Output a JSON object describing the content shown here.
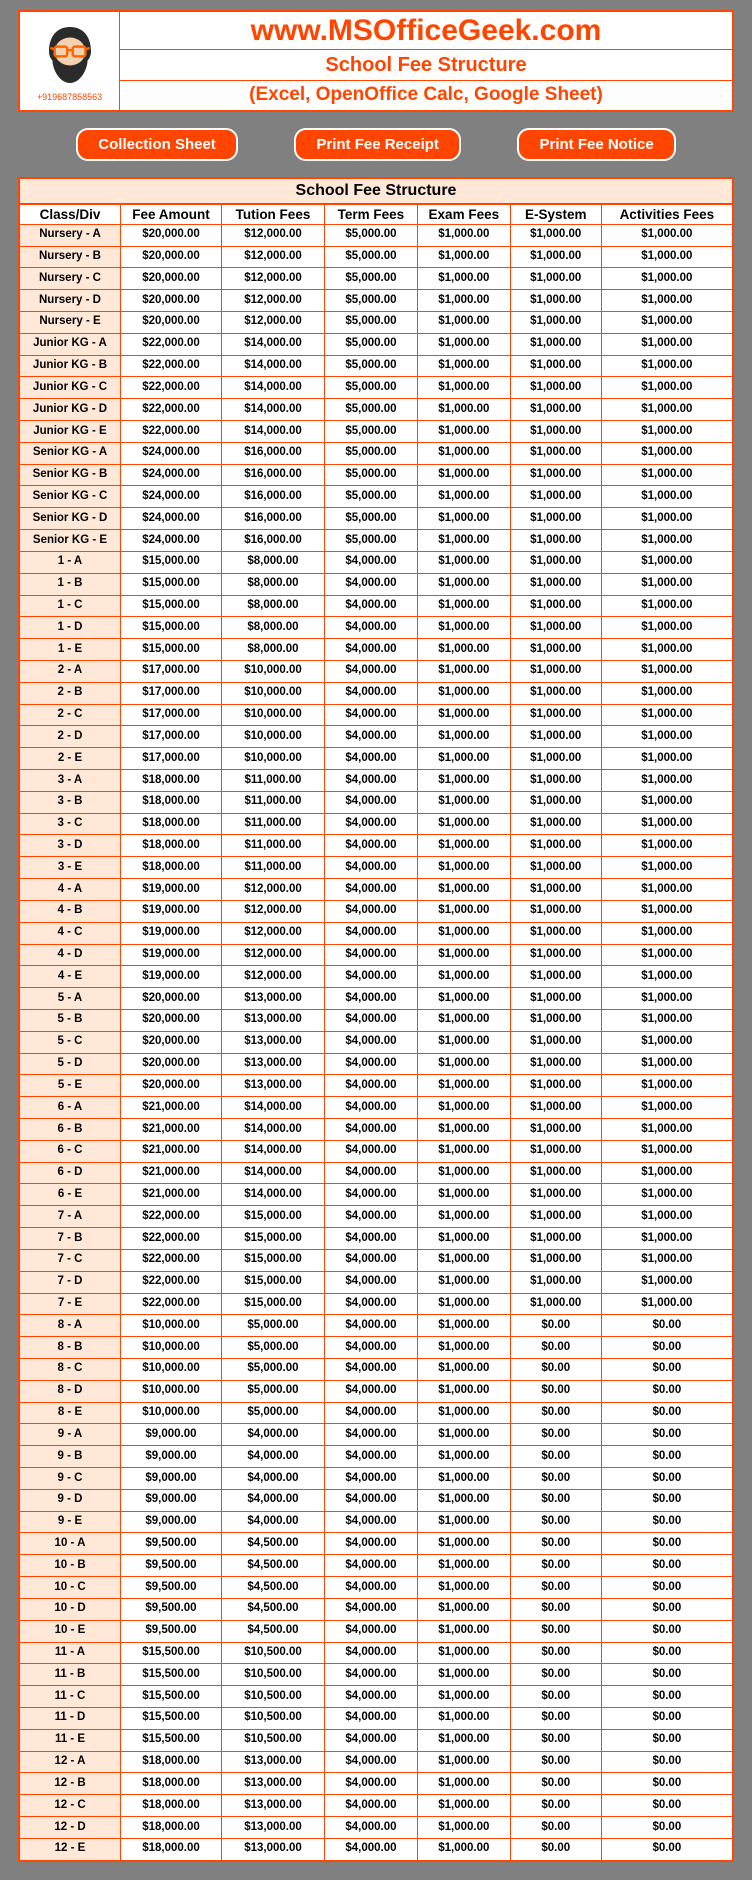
{
  "header": {
    "phone": "+919687858563",
    "url": "www.MSOfficeGeek.com",
    "title": "School Fee Structure",
    "subtitle": "(Excel, OpenOffice Calc, Google Sheet)"
  },
  "buttons": {
    "collection": "Collection Sheet",
    "receipt": "Print Fee Receipt",
    "notice": "Print Fee Notice"
  },
  "table": {
    "caption": "School Fee Structure",
    "columns": [
      "Class/Div",
      "Fee Amount",
      "Tution Fees",
      "Term Fees",
      "Exam Fees",
      "E-System",
      "Activities Fees"
    ],
    "rows": [
      [
        "Nursery - A",
        "$20,000.00",
        "$12,000.00",
        "$5,000.00",
        "$1,000.00",
        "$1,000.00",
        "$1,000.00"
      ],
      [
        "Nursery - B",
        "$20,000.00",
        "$12,000.00",
        "$5,000.00",
        "$1,000.00",
        "$1,000.00",
        "$1,000.00"
      ],
      [
        "Nursery - C",
        "$20,000.00",
        "$12,000.00",
        "$5,000.00",
        "$1,000.00",
        "$1,000.00",
        "$1,000.00"
      ],
      [
        "Nursery - D",
        "$20,000.00",
        "$12,000.00",
        "$5,000.00",
        "$1,000.00",
        "$1,000.00",
        "$1,000.00"
      ],
      [
        "Nursery - E",
        "$20,000.00",
        "$12,000.00",
        "$5,000.00",
        "$1,000.00",
        "$1,000.00",
        "$1,000.00"
      ],
      [
        "Junior KG - A",
        "$22,000.00",
        "$14,000.00",
        "$5,000.00",
        "$1,000.00",
        "$1,000.00",
        "$1,000.00"
      ],
      [
        "Junior KG - B",
        "$22,000.00",
        "$14,000.00",
        "$5,000.00",
        "$1,000.00",
        "$1,000.00",
        "$1,000.00"
      ],
      [
        "Junior KG - C",
        "$22,000.00",
        "$14,000.00",
        "$5,000.00",
        "$1,000.00",
        "$1,000.00",
        "$1,000.00"
      ],
      [
        "Junior KG - D",
        "$22,000.00",
        "$14,000.00",
        "$5,000.00",
        "$1,000.00",
        "$1,000.00",
        "$1,000.00"
      ],
      [
        "Junior KG - E",
        "$22,000.00",
        "$14,000.00",
        "$5,000.00",
        "$1,000.00",
        "$1,000.00",
        "$1,000.00"
      ],
      [
        "Senior KG - A",
        "$24,000.00",
        "$16,000.00",
        "$5,000.00",
        "$1,000.00",
        "$1,000.00",
        "$1,000.00"
      ],
      [
        "Senior KG - B",
        "$24,000.00",
        "$16,000.00",
        "$5,000.00",
        "$1,000.00",
        "$1,000.00",
        "$1,000.00"
      ],
      [
        "Senior KG - C",
        "$24,000.00",
        "$16,000.00",
        "$5,000.00",
        "$1,000.00",
        "$1,000.00",
        "$1,000.00"
      ],
      [
        "Senior KG - D",
        "$24,000.00",
        "$16,000.00",
        "$5,000.00",
        "$1,000.00",
        "$1,000.00",
        "$1,000.00"
      ],
      [
        "Senior KG - E",
        "$24,000.00",
        "$16,000.00",
        "$5,000.00",
        "$1,000.00",
        "$1,000.00",
        "$1,000.00"
      ],
      [
        "1 - A",
        "$15,000.00",
        "$8,000.00",
        "$4,000.00",
        "$1,000.00",
        "$1,000.00",
        "$1,000.00"
      ],
      [
        "1 - B",
        "$15,000.00",
        "$8,000.00",
        "$4,000.00",
        "$1,000.00",
        "$1,000.00",
        "$1,000.00"
      ],
      [
        "1 - C",
        "$15,000.00",
        "$8,000.00",
        "$4,000.00",
        "$1,000.00",
        "$1,000.00",
        "$1,000.00"
      ],
      [
        "1 - D",
        "$15,000.00",
        "$8,000.00",
        "$4,000.00",
        "$1,000.00",
        "$1,000.00",
        "$1,000.00"
      ],
      [
        "1 - E",
        "$15,000.00",
        "$8,000.00",
        "$4,000.00",
        "$1,000.00",
        "$1,000.00",
        "$1,000.00"
      ],
      [
        "2 - A",
        "$17,000.00",
        "$10,000.00",
        "$4,000.00",
        "$1,000.00",
        "$1,000.00",
        "$1,000.00"
      ],
      [
        "2 - B",
        "$17,000.00",
        "$10,000.00",
        "$4,000.00",
        "$1,000.00",
        "$1,000.00",
        "$1,000.00"
      ],
      [
        "2 - C",
        "$17,000.00",
        "$10,000.00",
        "$4,000.00",
        "$1,000.00",
        "$1,000.00",
        "$1,000.00"
      ],
      [
        "2 - D",
        "$17,000.00",
        "$10,000.00",
        "$4,000.00",
        "$1,000.00",
        "$1,000.00",
        "$1,000.00"
      ],
      [
        "2 - E",
        "$17,000.00",
        "$10,000.00",
        "$4,000.00",
        "$1,000.00",
        "$1,000.00",
        "$1,000.00"
      ],
      [
        "3 - A",
        "$18,000.00",
        "$11,000.00",
        "$4,000.00",
        "$1,000.00",
        "$1,000.00",
        "$1,000.00"
      ],
      [
        "3 - B",
        "$18,000.00",
        "$11,000.00",
        "$4,000.00",
        "$1,000.00",
        "$1,000.00",
        "$1,000.00"
      ],
      [
        "3 - C",
        "$18,000.00",
        "$11,000.00",
        "$4,000.00",
        "$1,000.00",
        "$1,000.00",
        "$1,000.00"
      ],
      [
        "3 - D",
        "$18,000.00",
        "$11,000.00",
        "$4,000.00",
        "$1,000.00",
        "$1,000.00",
        "$1,000.00"
      ],
      [
        "3 - E",
        "$18,000.00",
        "$11,000.00",
        "$4,000.00",
        "$1,000.00",
        "$1,000.00",
        "$1,000.00"
      ],
      [
        "4 - A",
        "$19,000.00",
        "$12,000.00",
        "$4,000.00",
        "$1,000.00",
        "$1,000.00",
        "$1,000.00"
      ],
      [
        "4 - B",
        "$19,000.00",
        "$12,000.00",
        "$4,000.00",
        "$1,000.00",
        "$1,000.00",
        "$1,000.00"
      ],
      [
        "4 - C",
        "$19,000.00",
        "$12,000.00",
        "$4,000.00",
        "$1,000.00",
        "$1,000.00",
        "$1,000.00"
      ],
      [
        "4 - D",
        "$19,000.00",
        "$12,000.00",
        "$4,000.00",
        "$1,000.00",
        "$1,000.00",
        "$1,000.00"
      ],
      [
        "4 - E",
        "$19,000.00",
        "$12,000.00",
        "$4,000.00",
        "$1,000.00",
        "$1,000.00",
        "$1,000.00"
      ],
      [
        "5 - A",
        "$20,000.00",
        "$13,000.00",
        "$4,000.00",
        "$1,000.00",
        "$1,000.00",
        "$1,000.00"
      ],
      [
        "5 - B",
        "$20,000.00",
        "$13,000.00",
        "$4,000.00",
        "$1,000.00",
        "$1,000.00",
        "$1,000.00"
      ],
      [
        "5 - C",
        "$20,000.00",
        "$13,000.00",
        "$4,000.00",
        "$1,000.00",
        "$1,000.00",
        "$1,000.00"
      ],
      [
        "5 - D",
        "$20,000.00",
        "$13,000.00",
        "$4,000.00",
        "$1,000.00",
        "$1,000.00",
        "$1,000.00"
      ],
      [
        "5 - E",
        "$20,000.00",
        "$13,000.00",
        "$4,000.00",
        "$1,000.00",
        "$1,000.00",
        "$1,000.00"
      ],
      [
        "6 - A",
        "$21,000.00",
        "$14,000.00",
        "$4,000.00",
        "$1,000.00",
        "$1,000.00",
        "$1,000.00"
      ],
      [
        "6 - B",
        "$21,000.00",
        "$14,000.00",
        "$4,000.00",
        "$1,000.00",
        "$1,000.00",
        "$1,000.00"
      ],
      [
        "6 - C",
        "$21,000.00",
        "$14,000.00",
        "$4,000.00",
        "$1,000.00",
        "$1,000.00",
        "$1,000.00"
      ],
      [
        "6 - D",
        "$21,000.00",
        "$14,000.00",
        "$4,000.00",
        "$1,000.00",
        "$1,000.00",
        "$1,000.00"
      ],
      [
        "6 - E",
        "$21,000.00",
        "$14,000.00",
        "$4,000.00",
        "$1,000.00",
        "$1,000.00",
        "$1,000.00"
      ],
      [
        "7 - A",
        "$22,000.00",
        "$15,000.00",
        "$4,000.00",
        "$1,000.00",
        "$1,000.00",
        "$1,000.00"
      ],
      [
        "7 - B",
        "$22,000.00",
        "$15,000.00",
        "$4,000.00",
        "$1,000.00",
        "$1,000.00",
        "$1,000.00"
      ],
      [
        "7 - C",
        "$22,000.00",
        "$15,000.00",
        "$4,000.00",
        "$1,000.00",
        "$1,000.00",
        "$1,000.00"
      ],
      [
        "7 - D",
        "$22,000.00",
        "$15,000.00",
        "$4,000.00",
        "$1,000.00",
        "$1,000.00",
        "$1,000.00"
      ],
      [
        "7 - E",
        "$22,000.00",
        "$15,000.00",
        "$4,000.00",
        "$1,000.00",
        "$1,000.00",
        "$1,000.00"
      ],
      [
        "8 - A",
        "$10,000.00",
        "$5,000.00",
        "$4,000.00",
        "$1,000.00",
        "$0.00",
        "$0.00"
      ],
      [
        "8 - B",
        "$10,000.00",
        "$5,000.00",
        "$4,000.00",
        "$1,000.00",
        "$0.00",
        "$0.00"
      ],
      [
        "8 - C",
        "$10,000.00",
        "$5,000.00",
        "$4,000.00",
        "$1,000.00",
        "$0.00",
        "$0.00"
      ],
      [
        "8 - D",
        "$10,000.00",
        "$5,000.00",
        "$4,000.00",
        "$1,000.00",
        "$0.00",
        "$0.00"
      ],
      [
        "8 - E",
        "$10,000.00",
        "$5,000.00",
        "$4,000.00",
        "$1,000.00",
        "$0.00",
        "$0.00"
      ],
      [
        "9 - A",
        "$9,000.00",
        "$4,000.00",
        "$4,000.00",
        "$1,000.00",
        "$0.00",
        "$0.00"
      ],
      [
        "9 - B",
        "$9,000.00",
        "$4,000.00",
        "$4,000.00",
        "$1,000.00",
        "$0.00",
        "$0.00"
      ],
      [
        "9 - C",
        "$9,000.00",
        "$4,000.00",
        "$4,000.00",
        "$1,000.00",
        "$0.00",
        "$0.00"
      ],
      [
        "9 - D",
        "$9,000.00",
        "$4,000.00",
        "$4,000.00",
        "$1,000.00",
        "$0.00",
        "$0.00"
      ],
      [
        "9 - E",
        "$9,000.00",
        "$4,000.00",
        "$4,000.00",
        "$1,000.00",
        "$0.00",
        "$0.00"
      ],
      [
        "10 - A",
        "$9,500.00",
        "$4,500.00",
        "$4,000.00",
        "$1,000.00",
        "$0.00",
        "$0.00"
      ],
      [
        "10 - B",
        "$9,500.00",
        "$4,500.00",
        "$4,000.00",
        "$1,000.00",
        "$0.00",
        "$0.00"
      ],
      [
        "10 - C",
        "$9,500.00",
        "$4,500.00",
        "$4,000.00",
        "$1,000.00",
        "$0.00",
        "$0.00"
      ],
      [
        "10 - D",
        "$9,500.00",
        "$4,500.00",
        "$4,000.00",
        "$1,000.00",
        "$0.00",
        "$0.00"
      ],
      [
        "10 - E",
        "$9,500.00",
        "$4,500.00",
        "$4,000.00",
        "$1,000.00",
        "$0.00",
        "$0.00"
      ],
      [
        "11 - A",
        "$15,500.00",
        "$10,500.00",
        "$4,000.00",
        "$1,000.00",
        "$0.00",
        "$0.00"
      ],
      [
        "11 - B",
        "$15,500.00",
        "$10,500.00",
        "$4,000.00",
        "$1,000.00",
        "$0.00",
        "$0.00"
      ],
      [
        "11 - C",
        "$15,500.00",
        "$10,500.00",
        "$4,000.00",
        "$1,000.00",
        "$0.00",
        "$0.00"
      ],
      [
        "11 - D",
        "$15,500.00",
        "$10,500.00",
        "$4,000.00",
        "$1,000.00",
        "$0.00",
        "$0.00"
      ],
      [
        "11 - E",
        "$15,500.00",
        "$10,500.00",
        "$4,000.00",
        "$1,000.00",
        "$0.00",
        "$0.00"
      ],
      [
        "12 - A",
        "$18,000.00",
        "$13,000.00",
        "$4,000.00",
        "$1,000.00",
        "$0.00",
        "$0.00"
      ],
      [
        "12 - B",
        "$18,000.00",
        "$13,000.00",
        "$4,000.00",
        "$1,000.00",
        "$0.00",
        "$0.00"
      ],
      [
        "12 - C",
        "$18,000.00",
        "$13,000.00",
        "$4,000.00",
        "$1,000.00",
        "$0.00",
        "$0.00"
      ],
      [
        "12 - D",
        "$18,000.00",
        "$13,000.00",
        "$4,000.00",
        "$1,000.00",
        "$0.00",
        "$0.00"
      ],
      [
        "12 - E",
        "$18,000.00",
        "$13,000.00",
        "$4,000.00",
        "$1,000.00",
        "$0.00",
        "$0.00"
      ]
    ]
  },
  "colors": {
    "accent": "#ff4500",
    "row_highlight": "#ffe8d8",
    "page_bg": "#808080",
    "white": "#ffffff"
  }
}
